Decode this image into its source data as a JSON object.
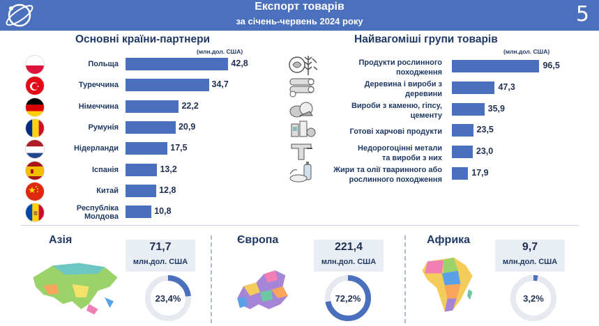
{
  "header": {
    "title": "Експорт товарів",
    "subtitle": "за січень-червень 2024 року",
    "page_number": "5"
  },
  "colors": {
    "header_bg": "#4a70be",
    "bar": "#4a6fbd",
    "donut_track": "#e6e9ef",
    "donut_fill": "#4a6fbd"
  },
  "chart_data": [
    {
      "type": "bar",
      "orientation": "horizontal",
      "title": "Основні країни-партнери",
      "unit": "(млн.дол. США)",
      "categories": [
        "Польща",
        "Туреччина",
        "Німеччина",
        "Румунія",
        "Нідерланди",
        "Іспанія",
        "Китай",
        "Республіка Молдова"
      ],
      "values": [
        42.8,
        34.7,
        22.2,
        20.9,
        17.5,
        13.2,
        12.8,
        10.8
      ],
      "value_labels": [
        "42,8",
        "34,7",
        "22,2",
        "20,9",
        "17,5",
        "13,2",
        "12,8",
        "10,8"
      ],
      "flag_icons": [
        "poland-flag-icon",
        "turkey-flag-icon",
        "germany-flag-icon",
        "romania-flag-icon",
        "netherlands-flag-icon",
        "spain-flag-icon",
        "china-flag-icon",
        "moldova-flag-icon"
      ]
    },
    {
      "type": "bar",
      "orientation": "horizontal",
      "title": "Найвагоміші групи товарів",
      "unit": "(млн.дол. США)",
      "categories": [
        [
          "Продукти рослинного",
          "походження"
        ],
        [
          "Деревина і вироби з",
          "деревини"
        ],
        [
          "Вироби з каменю, гіпсу,",
          "цементу"
        ],
        [
          "Готові харчові продукти"
        ],
        [
          "Недорогоцінні метали",
          "та вироби з них"
        ],
        [
          "Жири та олії тваринного або",
          "рослинного походження"
        ]
      ],
      "values": [
        96.5,
        47.3,
        35.9,
        23.5,
        23.0,
        17.9
      ],
      "value_labels": [
        "96,5",
        "47,3",
        "35,9",
        "23,5",
        "23,0",
        "17,9"
      ],
      "group_icons": [
        "plant-products-icon",
        "wood-logs-icon",
        "stone-products-icon",
        "prepared-food-icon",
        "metal-products-icon",
        "oils-fats-icon"
      ]
    },
    {
      "type": "pie",
      "subtype": "donut",
      "regions": [
        {
          "name": "Азія",
          "value": "71,7",
          "unit": "млн.дол. США",
          "share": 23.4,
          "share_label": "23,4%",
          "map_icon": "asia-map-icon"
        },
        {
          "name": "Європа",
          "value": "221,4",
          "unit": "млн.дол. США",
          "share": 72.2,
          "share_label": "72,2%",
          "map_icon": "europe-map-icon"
        },
        {
          "name": "Африка",
          "value": "9,7",
          "unit": "млн.дол. США",
          "share": 3.2,
          "share_label": "3,2%",
          "map_icon": "africa-map-icon"
        }
      ]
    }
  ]
}
